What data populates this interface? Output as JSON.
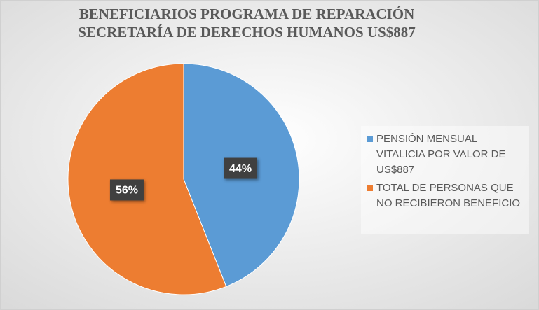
{
  "chart_data": {
    "type": "pie",
    "title": [
      "BENEFICIARIOS PROGRAMA DE REPARACIÓN",
      "SECRETARÍA DE DERECHOS HUMANOS US$887"
    ],
    "categories": [
      "PENSIÓN MENSUAL VITALICIA POR VALOR DE US$887",
      "TOTAL DE PERSONAS QUE NO RECIBIERON BENEFICIO"
    ],
    "values": [
      44,
      56
    ],
    "value_labels": [
      "44%",
      "56%"
    ],
    "colors": [
      "#5b9bd5",
      "#ed7d31"
    ],
    "legend": "right"
  }
}
